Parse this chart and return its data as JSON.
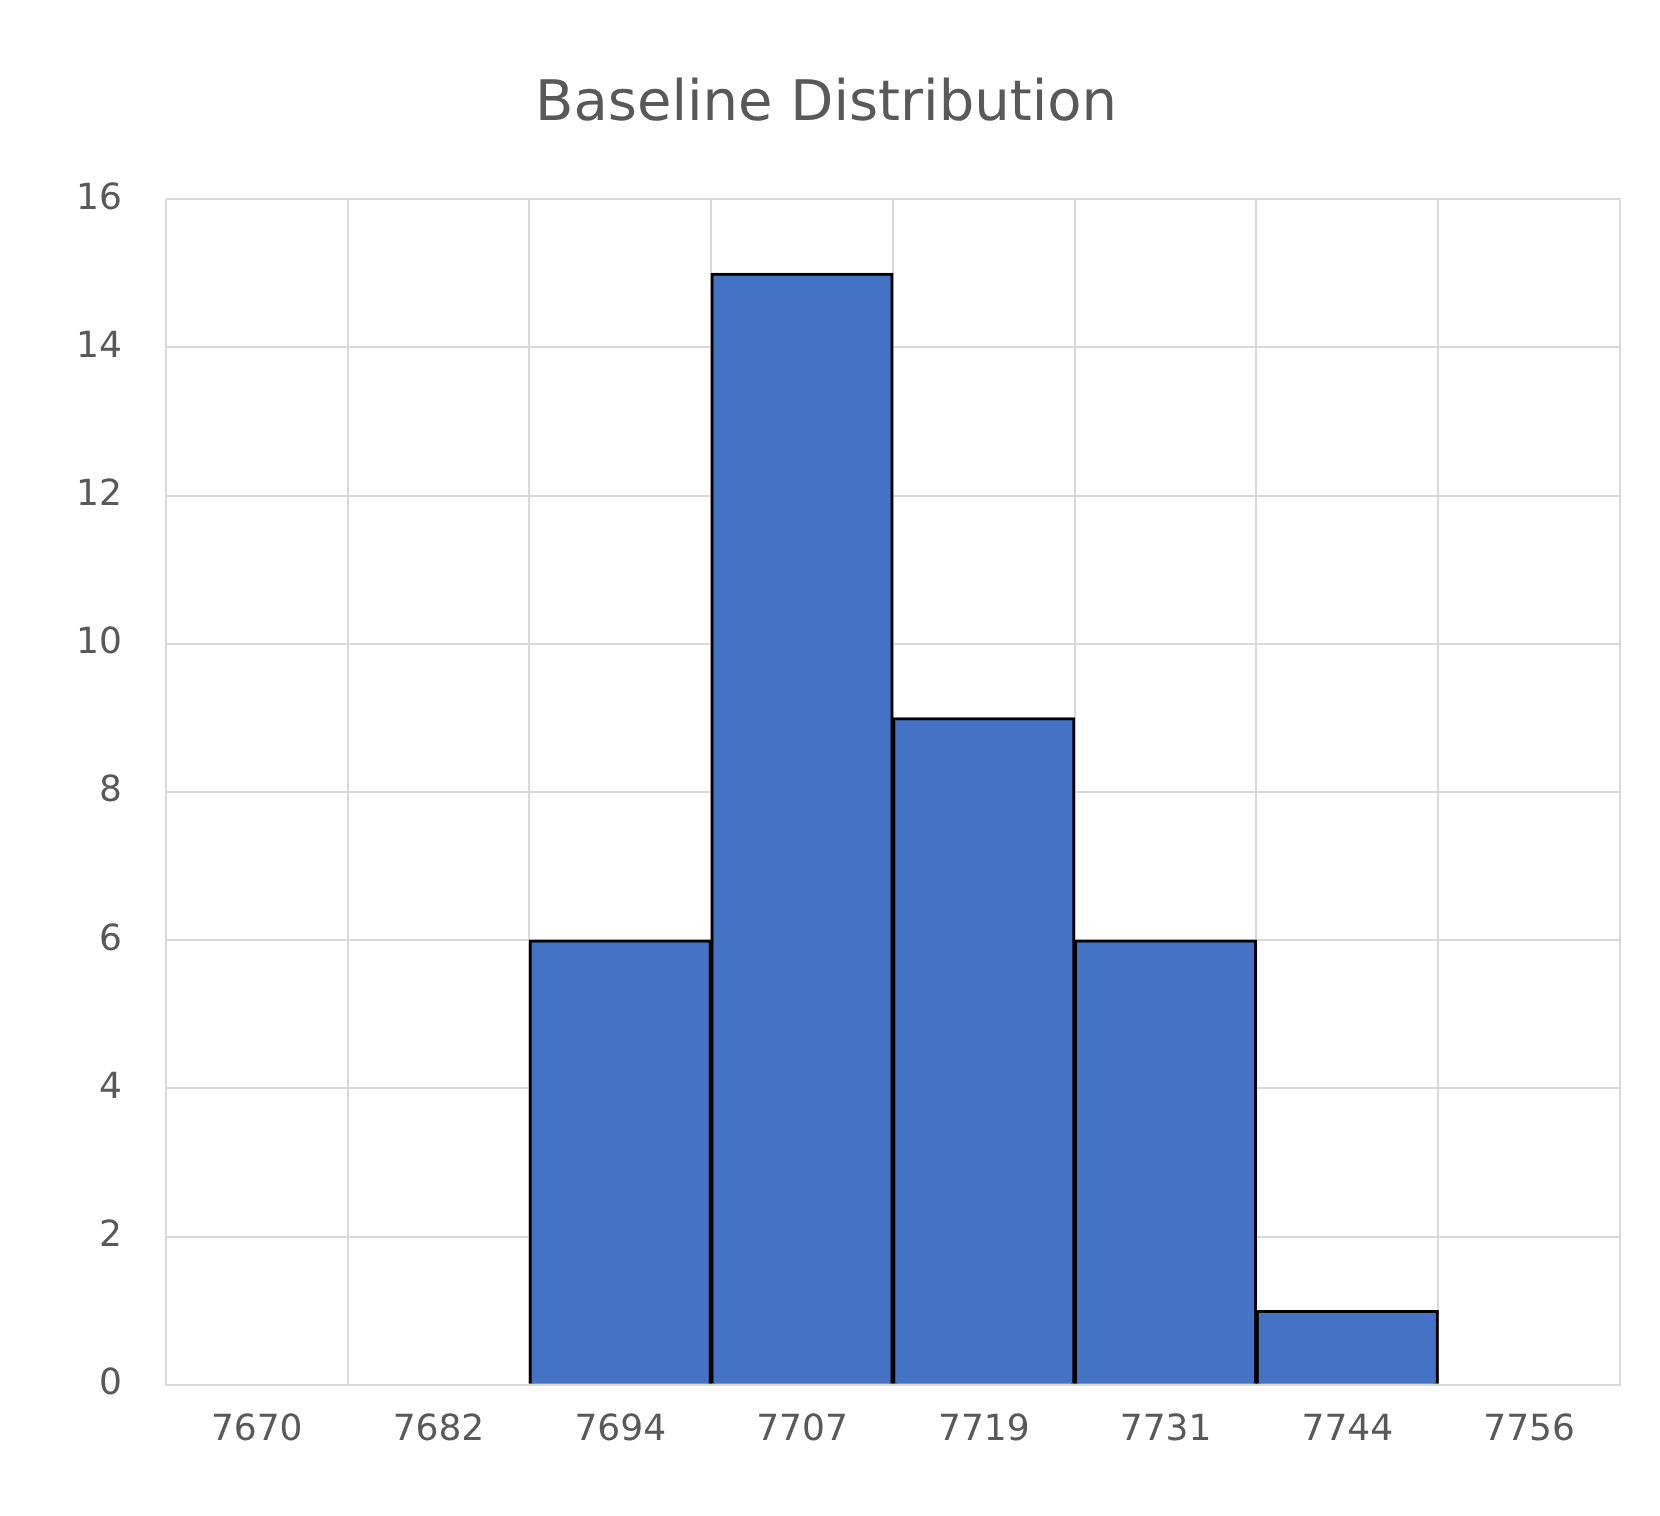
{
  "chart_data": {
    "type": "bar",
    "title": "Baseline Distribution",
    "categories": [
      "7670",
      "7682",
      "7694",
      "7707",
      "7719",
      "7731",
      "7744",
      "7756"
    ],
    "values": [
      0,
      0,
      6,
      15,
      9,
      6,
      1,
      0
    ],
    "color": "#4472c4",
    "ylim": [
      0,
      16
    ],
    "yticks": [
      0,
      2,
      4,
      6,
      8,
      10,
      12,
      14,
      16
    ],
    "grid": true,
    "legend": false
  }
}
